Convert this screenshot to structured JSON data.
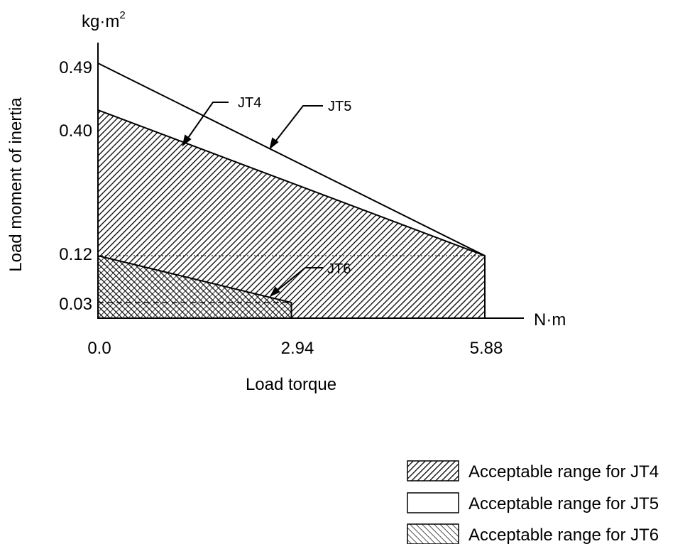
{
  "chart_data": {
    "type": "area",
    "title": "",
    "xlabel": "Load torque",
    "ylabel": "Load moment of inertia",
    "x_unit": "N·m",
    "y_unit": "kg·m",
    "y_unit_exp": "2",
    "xlim": [
      0,
      5.88
    ],
    "ylim": [
      0,
      0.49
    ],
    "x_ticks": [
      "0.0",
      "2.94",
      "5.88"
    ],
    "y_ticks": [
      "0.49",
      "0.40",
      "0.12",
      "0.03"
    ],
    "grid": false,
    "legend_position": "bottom-right",
    "series": [
      {
        "name": "JT4",
        "label": "Acceptable range for JT4",
        "pattern": "diagonal-up",
        "points": [
          [
            0,
            0.4
          ],
          [
            5.88,
            0.12
          ],
          [
            5.88,
            0
          ]
        ]
      },
      {
        "name": "JT5",
        "label": "Acceptable range for JT5",
        "pattern": "none",
        "points": [
          [
            0,
            0.49
          ],
          [
            5.88,
            0.12
          ],
          [
            5.88,
            0
          ]
        ]
      },
      {
        "name": "JT6",
        "label": "Acceptable range for JT6",
        "pattern": "diagonal-down",
        "points": [
          [
            0,
            0.12
          ],
          [
            2.94,
            0.03
          ],
          [
            2.94,
            0
          ]
        ]
      }
    ],
    "reference_lines": [
      {
        "style": "dotted",
        "y": 0.12,
        "x_from": 0,
        "x_to": 5.88
      },
      {
        "style": "dashed",
        "y": 0.03,
        "x_from": 0,
        "x_to": 2.94
      }
    ]
  }
}
